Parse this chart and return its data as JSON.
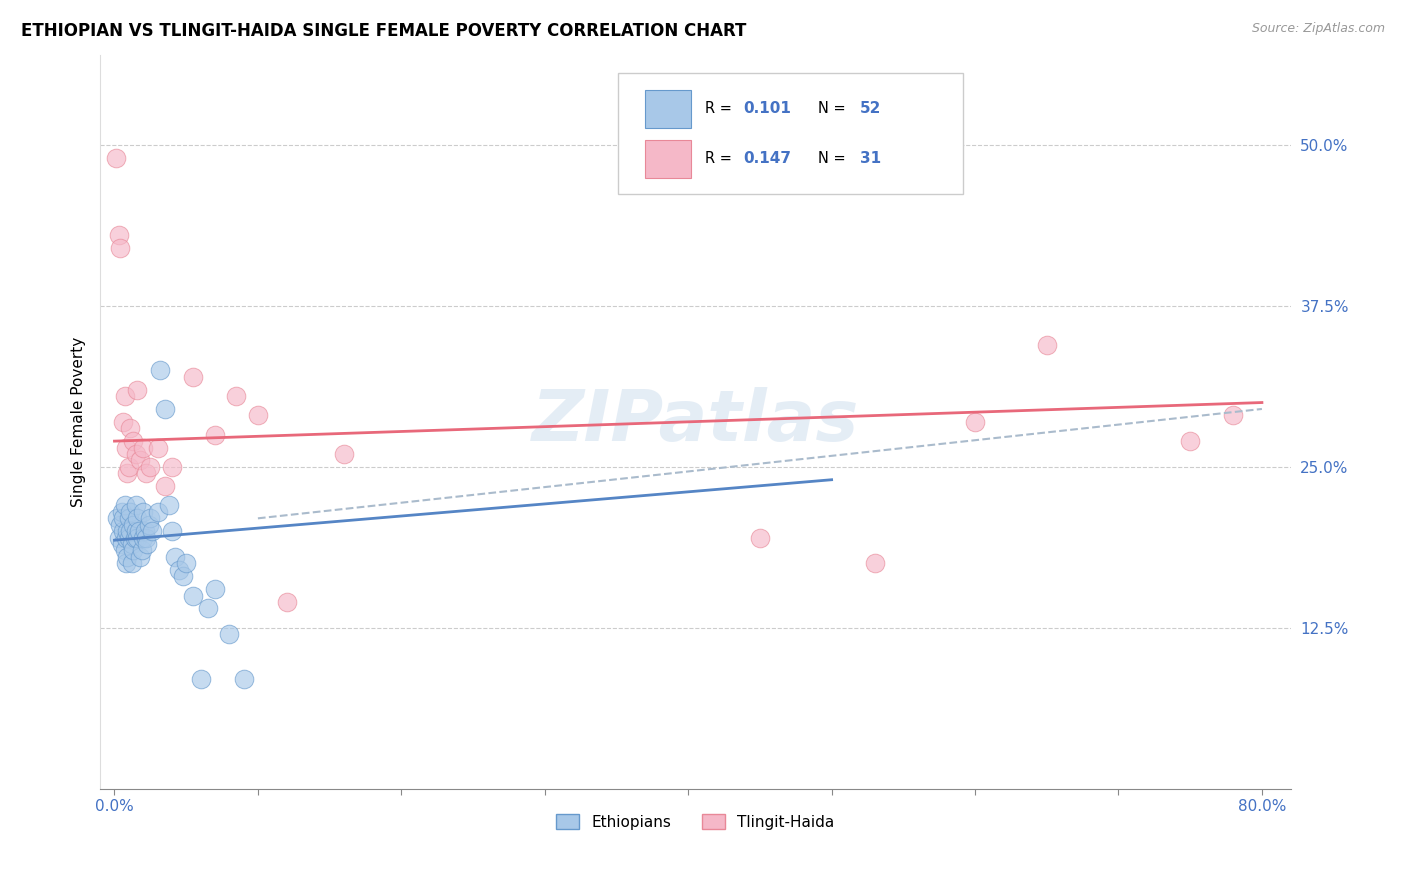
{
  "title": "ETHIOPIAN VS TLINGIT-HAIDA SINGLE FEMALE POVERTY CORRELATION CHART",
  "source": "Source: ZipAtlas.com",
  "ylabel": "Single Female Poverty",
  "ytick_labels": [
    "12.5%",
    "25.0%",
    "37.5%",
    "50.0%"
  ],
  "ytick_values": [
    0.125,
    0.25,
    0.375,
    0.5
  ],
  "xlim": [
    -0.01,
    0.82
  ],
  "ylim": [
    0.0,
    0.57
  ],
  "legend_r1": "0.101",
  "legend_n1": "52",
  "legend_r2": "0.147",
  "legend_n2": "31",
  "color_ethiopian_fill": "#a8c8e8",
  "color_ethiopian_edge": "#6699cc",
  "color_tlingit_fill": "#f5b8c8",
  "color_tlingit_edge": "#e88898",
  "color_line_ethiopian": "#5585c5",
  "color_line_tlingit": "#e8687a",
  "color_trend_dashed": "#aabbcc",
  "watermark": "ZIPatlas",
  "ethiopian_x": [
    0.002,
    0.003,
    0.004,
    0.005,
    0.005,
    0.006,
    0.006,
    0.007,
    0.007,
    0.008,
    0.008,
    0.009,
    0.009,
    0.01,
    0.01,
    0.011,
    0.011,
    0.012,
    0.012,
    0.013,
    0.013,
    0.014,
    0.015,
    0.015,
    0.016,
    0.016,
    0.017,
    0.018,
    0.019,
    0.02,
    0.02,
    0.021,
    0.022,
    0.023,
    0.024,
    0.025,
    0.026,
    0.03,
    0.032,
    0.035,
    0.038,
    0.04,
    0.042,
    0.045,
    0.048,
    0.05,
    0.055,
    0.06,
    0.065,
    0.07,
    0.08,
    0.09
  ],
  "ethiopian_y": [
    0.21,
    0.195,
    0.205,
    0.215,
    0.19,
    0.2,
    0.21,
    0.185,
    0.22,
    0.175,
    0.195,
    0.2,
    0.18,
    0.21,
    0.195,
    0.2,
    0.215,
    0.175,
    0.19,
    0.205,
    0.185,
    0.195,
    0.2,
    0.22,
    0.195,
    0.21,
    0.2,
    0.18,
    0.185,
    0.195,
    0.215,
    0.2,
    0.195,
    0.19,
    0.205,
    0.21,
    0.2,
    0.215,
    0.325,
    0.295,
    0.22,
    0.2,
    0.18,
    0.17,
    0.165,
    0.175,
    0.15,
    0.085,
    0.14,
    0.155,
    0.12,
    0.085
  ],
  "tlingit_x": [
    0.001,
    0.003,
    0.004,
    0.006,
    0.007,
    0.008,
    0.009,
    0.01,
    0.011,
    0.013,
    0.015,
    0.016,
    0.018,
    0.02,
    0.022,
    0.025,
    0.03,
    0.035,
    0.04,
    0.055,
    0.07,
    0.085,
    0.1,
    0.12,
    0.16,
    0.45,
    0.53,
    0.6,
    0.65,
    0.75,
    0.78
  ],
  "tlingit_y": [
    0.49,
    0.43,
    0.42,
    0.285,
    0.305,
    0.265,
    0.245,
    0.25,
    0.28,
    0.27,
    0.26,
    0.31,
    0.255,
    0.265,
    0.245,
    0.25,
    0.265,
    0.235,
    0.25,
    0.32,
    0.275,
    0.305,
    0.29,
    0.145,
    0.26,
    0.195,
    0.175,
    0.285,
    0.345,
    0.27,
    0.29
  ]
}
